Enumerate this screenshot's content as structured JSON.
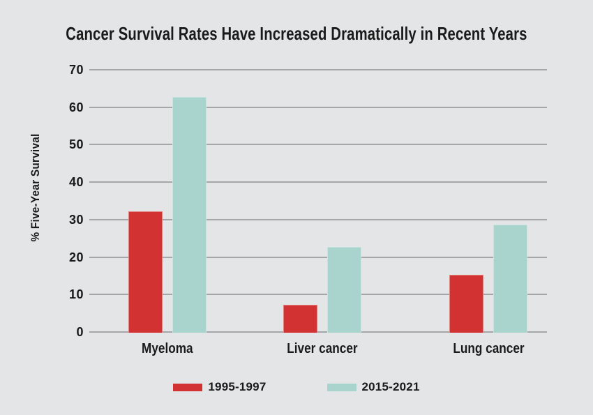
{
  "page": {
    "background": "#e4e5e7",
    "text_color": "#1a1a1a"
  },
  "chart_data": {
    "type": "bar",
    "title": "Cancer Survival Rates Have Increased Dramatically in Recent Years",
    "ylabel": "% Five-Year Survival",
    "xlabel": "",
    "categories": [
      "Myeloma",
      "Liver cancer",
      "Lung cancer"
    ],
    "series": [
      {
        "name": "1995-1997",
        "color": "#d23332",
        "values": [
          32,
          7,
          15
        ]
      },
      {
        "name": "2015-2021",
        "color": "#a8d4cd",
        "values": [
          62.5,
          22.5,
          28.5
        ]
      }
    ],
    "ylim": [
      0,
      70
    ],
    "yticks": [
      0,
      10,
      20,
      30,
      40,
      50,
      60,
      70
    ],
    "grid": true,
    "gridline_color": "#a5a6a8",
    "legend_position": "bottom"
  }
}
